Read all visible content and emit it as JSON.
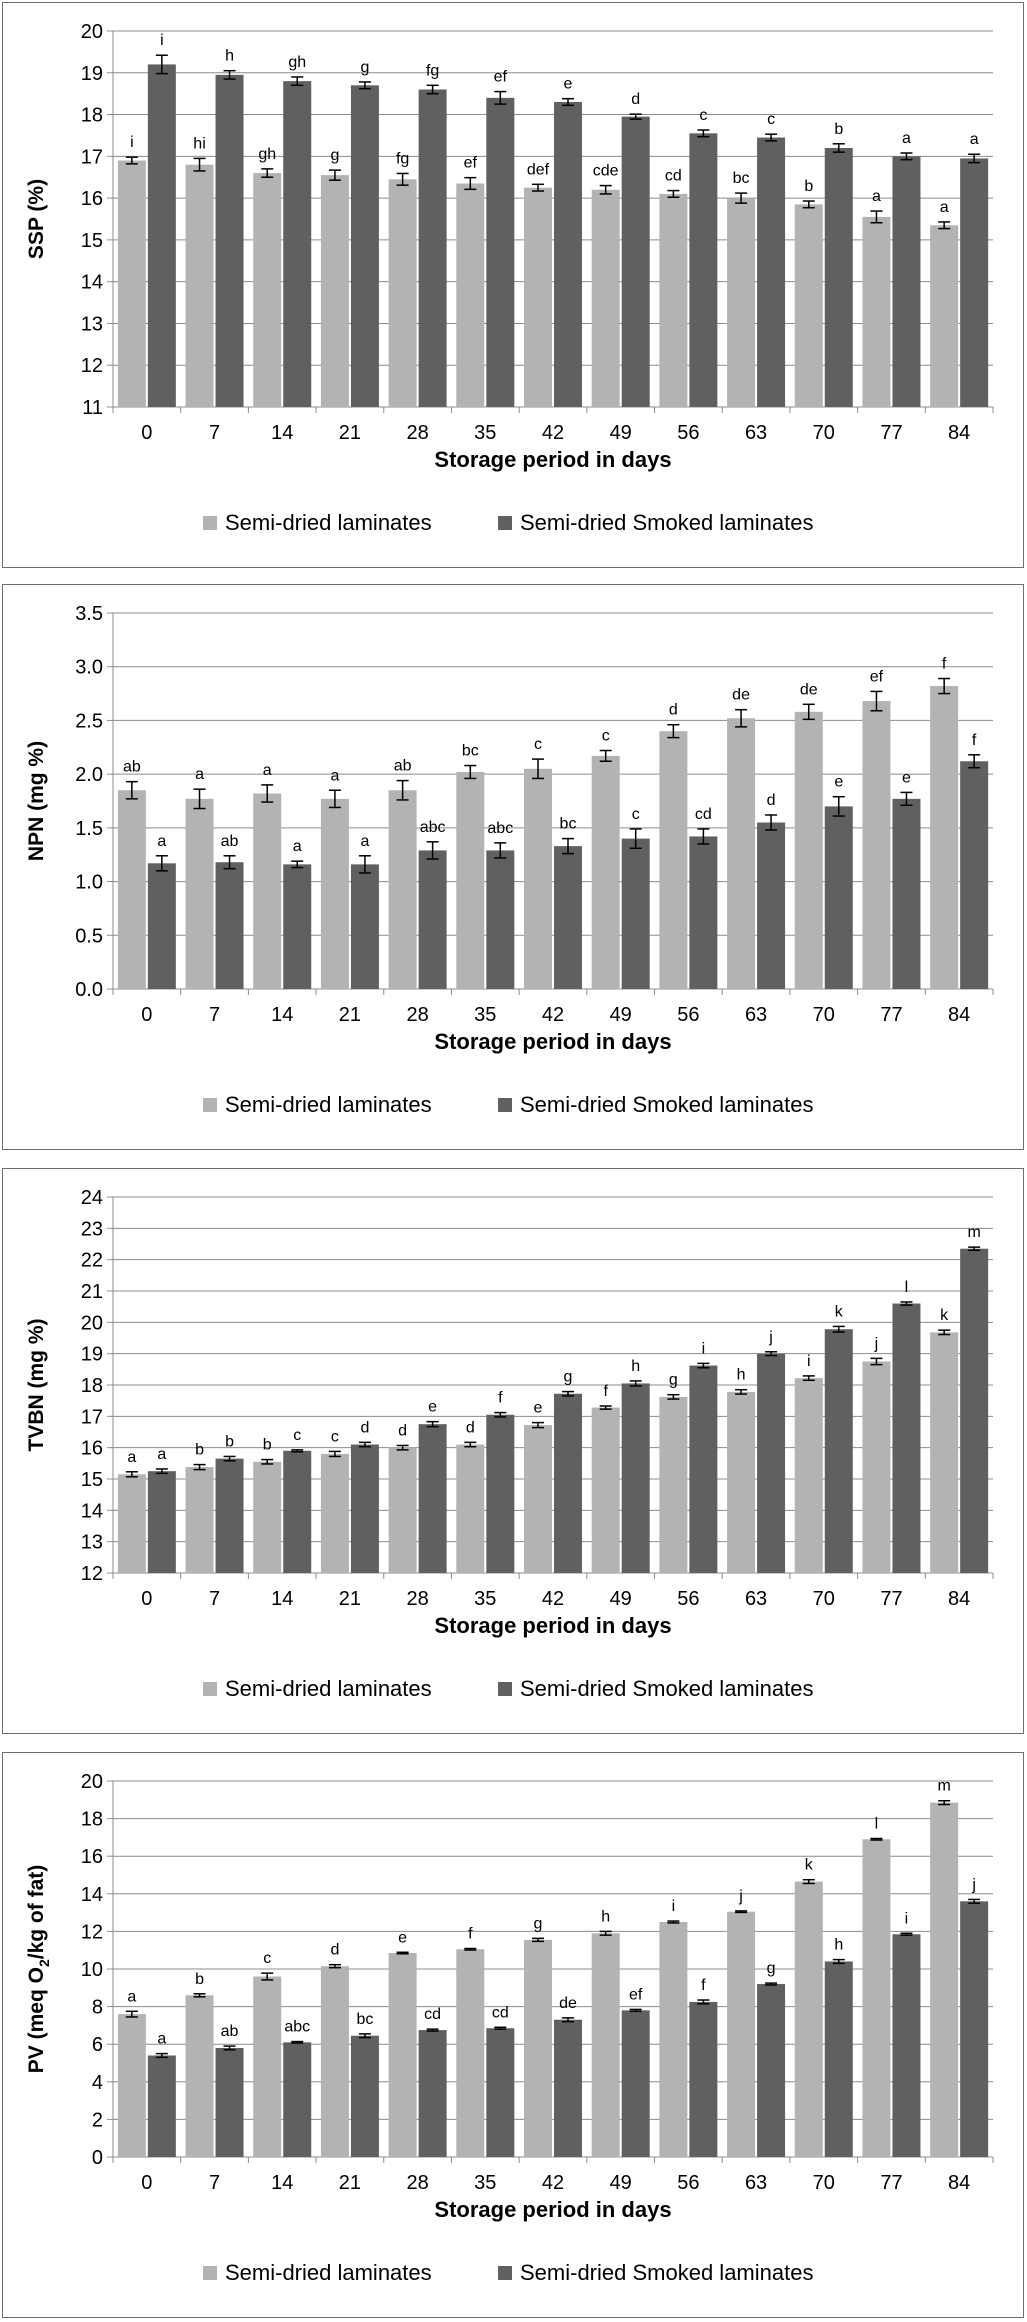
{
  "chart_data": [
    {
      "type": "bar",
      "ylabel": "SSP (%)",
      "xlabel": "Storage period in days",
      "ylim": [
        11,
        20
      ],
      "ytick_step": 1,
      "ytick_decimals": 0,
      "categories": [
        "0",
        "7",
        "14",
        "21",
        "28",
        "35",
        "42",
        "49",
        "56",
        "63",
        "70",
        "77",
        "84"
      ],
      "series": [
        {
          "name": "Semi-dried laminates",
          "color": "#b3b3b3",
          "values": [
            16.9,
            16.8,
            16.6,
            16.55,
            16.45,
            16.35,
            16.25,
            16.2,
            16.1,
            16.0,
            15.85,
            15.55,
            15.35
          ],
          "errors": [
            0.08,
            0.15,
            0.1,
            0.12,
            0.14,
            0.14,
            0.08,
            0.1,
            0.08,
            0.12,
            0.08,
            0.14,
            0.08
          ],
          "labels": [
            "i",
            "hi",
            "gh",
            "g",
            "fg",
            "ef",
            "def",
            "cde",
            "cd",
            "bc",
            "b",
            "a",
            "a"
          ]
        },
        {
          "name": "Semi-dried Smoked laminates",
          "color": "#606060",
          "values": [
            19.2,
            18.95,
            18.8,
            18.7,
            18.6,
            18.4,
            18.3,
            17.95,
            17.55,
            17.45,
            17.2,
            17.0,
            16.95
          ],
          "errors": [
            0.22,
            0.1,
            0.1,
            0.08,
            0.1,
            0.15,
            0.08,
            0.06,
            0.08,
            0.08,
            0.1,
            0.08,
            0.1
          ],
          "labels": [
            "i",
            "h",
            "gh",
            "g",
            "fg",
            "ef",
            "e",
            "d",
            "c",
            "c",
            "b",
            "a",
            "a"
          ]
        }
      ]
    },
    {
      "type": "bar",
      "ylabel": "NPN (mg %)",
      "xlabel": "Storage period in days",
      "ylim": [
        0,
        3.5
      ],
      "ytick_step": 0.5,
      "ytick_decimals": 1,
      "categories": [
        "0",
        "7",
        "14",
        "21",
        "28",
        "35",
        "42",
        "49",
        "56",
        "63",
        "70",
        "77",
        "84"
      ],
      "series": [
        {
          "name": "Semi-dried laminates",
          "color": "#b3b3b3",
          "values": [
            1.85,
            1.77,
            1.82,
            1.77,
            1.85,
            2.02,
            2.05,
            2.17,
            2.4,
            2.52,
            2.58,
            2.68,
            2.82
          ],
          "errors": [
            0.08,
            0.09,
            0.08,
            0.08,
            0.09,
            0.06,
            0.09,
            0.05,
            0.06,
            0.08,
            0.07,
            0.09,
            0.07
          ],
          "labels": [
            "ab",
            "a",
            "a",
            "a",
            "ab",
            "bc",
            "c",
            "c",
            "d",
            "de",
            "de",
            "ef",
            "f"
          ]
        },
        {
          "name": "Semi-dried Smoked laminates",
          "color": "#606060",
          "values": [
            1.17,
            1.18,
            1.16,
            1.16,
            1.29,
            1.29,
            1.33,
            1.4,
            1.42,
            1.55,
            1.7,
            1.77,
            2.12
          ],
          "errors": [
            0.07,
            0.06,
            0.03,
            0.08,
            0.08,
            0.07,
            0.07,
            0.09,
            0.07,
            0.07,
            0.09,
            0.06,
            0.06
          ],
          "labels": [
            "a",
            "ab",
            "a",
            "a",
            "abc",
            "abc",
            "bc",
            "c",
            "cd",
            "d",
            "e",
            "e",
            "f"
          ]
        }
      ]
    },
    {
      "type": "bar",
      "ylabel": "TVBN (mg %)",
      "xlabel": "Storage period in days",
      "ylim": [
        12,
        24
      ],
      "ytick_step": 1,
      "ytick_decimals": 0,
      "categories": [
        "0",
        "7",
        "14",
        "21",
        "28",
        "35",
        "42",
        "49",
        "56",
        "63",
        "70",
        "77",
        "84"
      ],
      "series": [
        {
          "name": "Semi-dried laminates",
          "color": "#b3b3b3",
          "values": [
            15.15,
            15.38,
            15.55,
            15.8,
            16.0,
            16.1,
            16.72,
            17.28,
            17.62,
            17.78,
            18.22,
            18.75,
            19.68
          ],
          "errors": [
            0.08,
            0.08,
            0.07,
            0.08,
            0.07,
            0.07,
            0.08,
            0.05,
            0.07,
            0.07,
            0.07,
            0.1,
            0.07
          ],
          "labels": [
            "a",
            "b",
            "b",
            "c",
            "d",
            "d",
            "e",
            "f",
            "g",
            "h",
            "i",
            "j",
            "k"
          ]
        },
        {
          "name": "Semi-dried Smoked laminates",
          "color": "#606060",
          "values": [
            15.25,
            15.65,
            15.9,
            16.1,
            16.75,
            17.05,
            17.72,
            18.05,
            18.62,
            19.0,
            19.78,
            20.6,
            22.35
          ],
          "errors": [
            0.07,
            0.07,
            0.03,
            0.07,
            0.08,
            0.07,
            0.07,
            0.08,
            0.07,
            0.06,
            0.09,
            0.05,
            0.05
          ],
          "labels": [
            "a",
            "b",
            "c",
            "d",
            "e",
            "f",
            "g",
            "h",
            "i",
            "j",
            "k",
            "l",
            "m"
          ]
        }
      ]
    },
    {
      "type": "bar",
      "ylabel_main": "PV (meq O",
      "ylabel_sub": "2",
      "ylabel_tail": "/kg of fat)",
      "xlabel": "Storage period in days",
      "ylim": [
        0,
        20
      ],
      "ytick_step": 2,
      "ytick_decimals": 0,
      "categories": [
        "0",
        "7",
        "14",
        "21",
        "28",
        "35",
        "42",
        "49",
        "56",
        "63",
        "70",
        "77",
        "84"
      ],
      "series": [
        {
          "name": "Semi-dried laminates",
          "color": "#b3b3b3",
          "values": [
            7.6,
            8.6,
            9.6,
            10.15,
            10.85,
            11.05,
            11.55,
            11.9,
            12.5,
            13.05,
            14.65,
            16.9,
            18.85
          ],
          "errors": [
            0.15,
            0.08,
            0.18,
            0.08,
            0.04,
            0.04,
            0.08,
            0.1,
            0.05,
            0.04,
            0.1,
            0.04,
            0.1
          ],
          "labels": [
            "a",
            "b",
            "c",
            "d",
            "e",
            "f",
            "g",
            "h",
            "i",
            "j",
            "k",
            "l",
            "m"
          ]
        },
        {
          "name": "Semi-dried Smoked laminates",
          "color": "#606060",
          "values": [
            5.4,
            5.8,
            6.1,
            6.45,
            6.75,
            6.85,
            7.3,
            7.8,
            8.25,
            9.2,
            10.4,
            11.85,
            13.6
          ],
          "errors": [
            0.1,
            0.1,
            0.04,
            0.1,
            0.05,
            0.05,
            0.1,
            0.05,
            0.1,
            0.05,
            0.1,
            0.05,
            0.1
          ],
          "labels": [
            "a",
            "ab",
            "abc",
            "bc",
            "cd",
            "cd",
            "de",
            "ef",
            "f",
            "g",
            "h",
            "i",
            "j"
          ]
        }
      ]
    }
  ]
}
